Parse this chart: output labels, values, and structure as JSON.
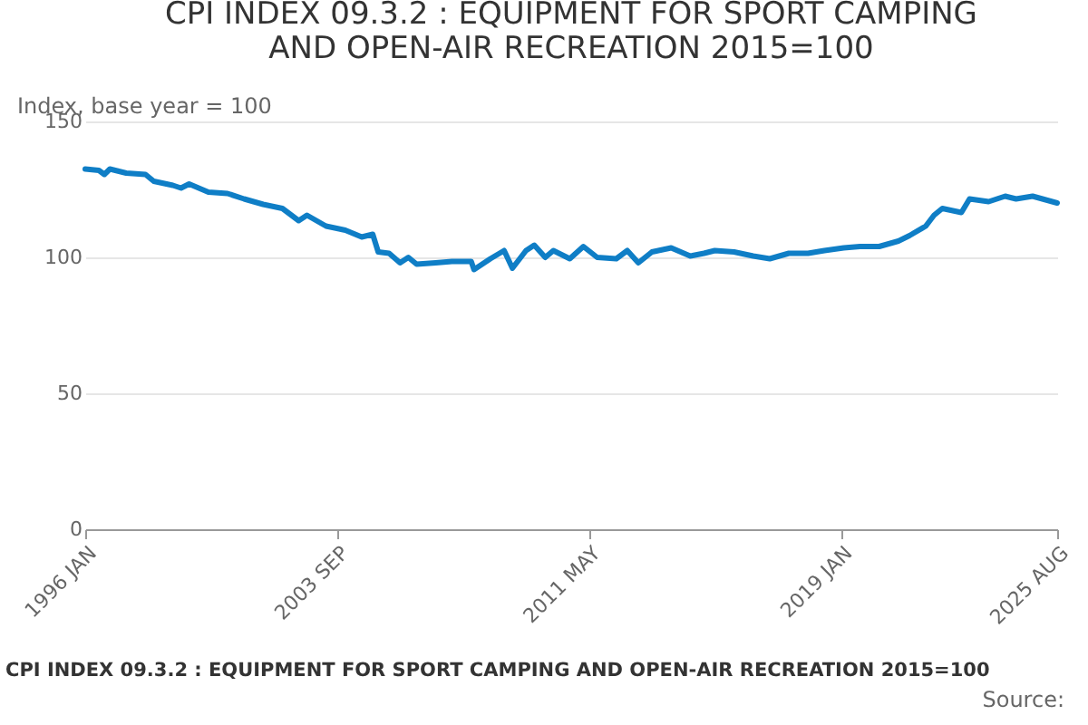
{
  "chart_data": {
    "type": "line",
    "title": "CPI INDEX 09.3.2 : EQUIPMENT FOR SPORT CAMPING AND OPEN-AIR RECREATION 2015=100",
    "ylabel": "Index, base year = 100",
    "x": [
      "1996-01",
      "1996-06",
      "1996-08",
      "1996-10",
      "1997-04",
      "1997-11",
      "1998-02",
      "1998-09",
      "1998-12",
      "1999-03",
      "1999-10",
      "2000-05",
      "2000-11",
      "2001-06",
      "2002-01",
      "2002-07",
      "2002-10",
      "2003-05",
      "2003-12",
      "2004-06",
      "2004-10",
      "2004-12",
      "2005-04",
      "2005-08",
      "2005-11",
      "2006-02",
      "2006-09",
      "2007-03",
      "2007-10",
      "2007-11",
      "2008-05",
      "2008-10",
      "2009-01",
      "2009-06",
      "2009-09",
      "2010-01",
      "2010-04",
      "2010-10",
      "2011-03",
      "2011-08",
      "2012-03",
      "2012-07",
      "2012-11",
      "2013-04",
      "2013-11",
      "2014-06",
      "2014-11",
      "2015-03",
      "2015-10",
      "2016-05",
      "2016-11",
      "2017-06",
      "2018-01",
      "2018-07",
      "2019-02",
      "2019-08",
      "2020-03",
      "2020-10",
      "2021-02",
      "2021-08",
      "2021-11",
      "2022-02",
      "2022-09",
      "2022-12",
      "2023-07",
      "2024-01",
      "2024-05",
      "2024-11",
      "2025-08"
    ],
    "series": [
      {
        "color": "#0f7ec6",
        "values": [
          132.5,
          132,
          130.5,
          132.5,
          131,
          130.5,
          128,
          126.5,
          125.5,
          127,
          124,
          123.5,
          121.5,
          119.5,
          118,
          113.5,
          115.5,
          111.5,
          110,
          107.5,
          108.5,
          102,
          101.5,
          98,
          100,
          97.5,
          98,
          98.5,
          98.5,
          95.5,
          99.5,
          102.5,
          96,
          102.5,
          104.5,
          100,
          102.5,
          99.5,
          104,
          100,
          99.5,
          102.5,
          98,
          102,
          103.5,
          100.5,
          101.5,
          102.5,
          102,
          100.5,
          99.5,
          101.5,
          101.5,
          102.5,
          103.5,
          104,
          104,
          106,
          108,
          111.5,
          115.5,
          118,
          116.5,
          121.5,
          120.5,
          122.5,
          121.5,
          122.5,
          120
        ]
      }
    ],
    "xlim": [
      "1996-01",
      "2025-08"
    ],
    "xticks": [
      {
        "value": "1996-01",
        "label": "1996 JAN"
      },
      {
        "value": "2003-09",
        "label": "2003 SEP"
      },
      {
        "value": "2011-05",
        "label": "2011 MAY"
      },
      {
        "value": "2019-01",
        "label": "2019 JAN"
      },
      {
        "value": "2025-08",
        "label": "2025 AUG"
      }
    ],
    "ylim": [
      0,
      150
    ],
    "yticks": [
      0,
      50,
      100,
      150
    ],
    "grid": "y",
    "marker": "none",
    "line_style": "solid",
    "annotations": [
      "CPI INDEX 09.3.2 : EQUIPMENT FOR SPORT CAMPING AND OPEN-AIR RECREATION 2015=100",
      "Source:"
    ]
  }
}
